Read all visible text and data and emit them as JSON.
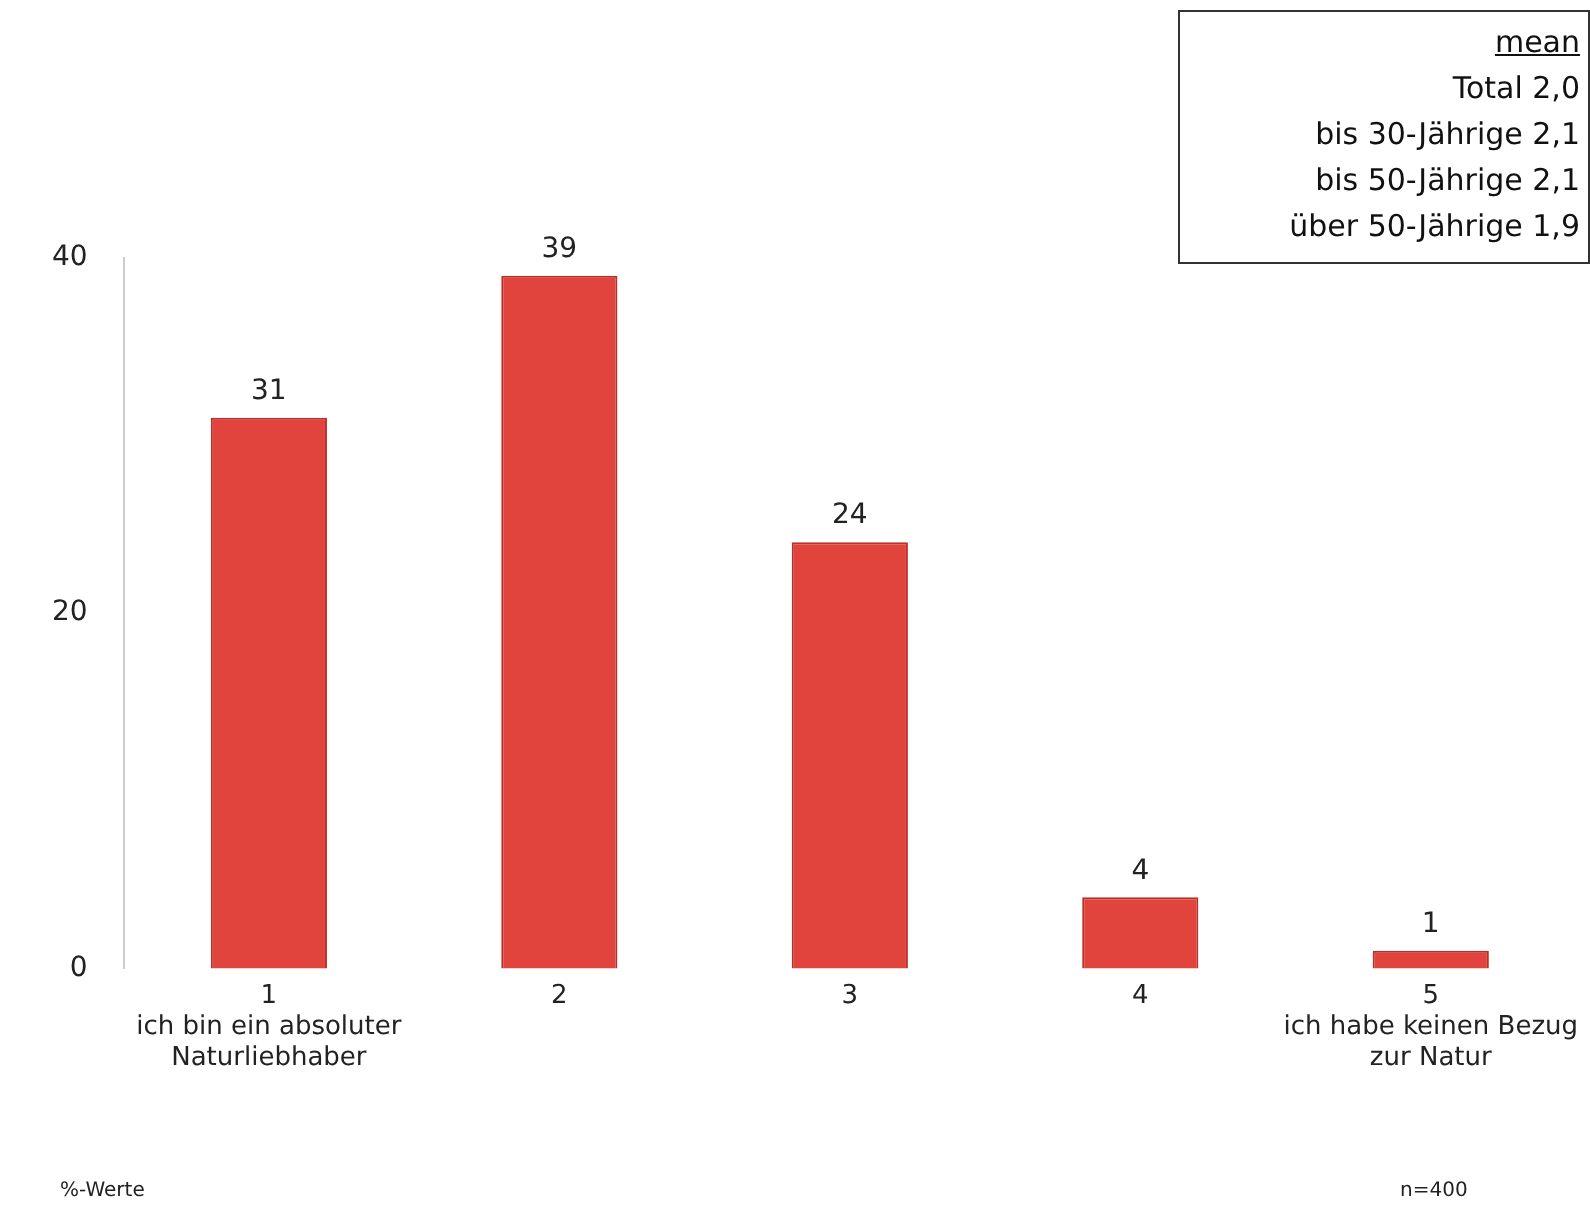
{
  "chart_data": {
    "type": "bar",
    "categories": [
      "1\nich bin ein absoluter\nNaturliebhaber",
      "2",
      "3",
      "4",
      "5\nich habe keinen Bezug\nzur Natur"
    ],
    "values": [
      31,
      39,
      24,
      4,
      1
    ],
    "color": "#e0443c",
    "ylim": [
      0,
      40
    ],
    "yticks": [
      0,
      20,
      40
    ],
    "grid": false,
    "legend": false,
    "data_labels": true,
    "annotations": [
      "mean",
      "Total 2,0",
      "bis 30-Jährige 2,1",
      "bis 50-Jährige 2,1",
      "über 50-Jährige 1,9",
      "%-Werte",
      "n=400"
    ]
  }
}
